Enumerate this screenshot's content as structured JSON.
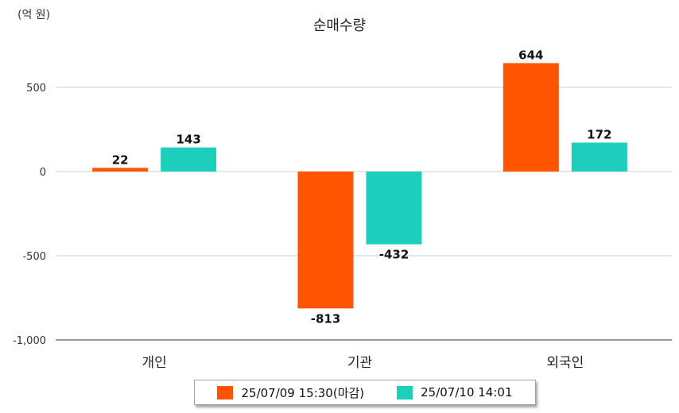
{
  "unit_label": "(억 원)",
  "colors": {
    "series_1": "#ff5500",
    "series_2": "#1ecebc",
    "grid": "#cccccc",
    "axis": "#999999"
  },
  "legend": [
    {
      "label": "25/07/09 15:30(마감)",
      "color": "#ff5500"
    },
    {
      "label": "25/07/10 14:01",
      "color": "#1ecebc"
    }
  ],
  "chart_data": {
    "type": "bar",
    "title": "순매수량",
    "xlabel": "",
    "ylabel": "",
    "categories": [
      "개인",
      "기관",
      "외국인"
    ],
    "series": [
      {
        "name": "25/07/09 15:30(마감)",
        "values": [
          22,
          -813,
          644
        ]
      },
      {
        "name": "25/07/10 14:01",
        "values": [
          143,
          -432,
          172
        ]
      }
    ],
    "ylim": [
      -1000,
      500
    ],
    "yticks": [
      500,
      0,
      -500,
      -1000
    ],
    "ytick_labels": [
      "500",
      "0",
      "-500",
      "-1,000"
    ],
    "grid": true,
    "legend_position": "bottom"
  }
}
